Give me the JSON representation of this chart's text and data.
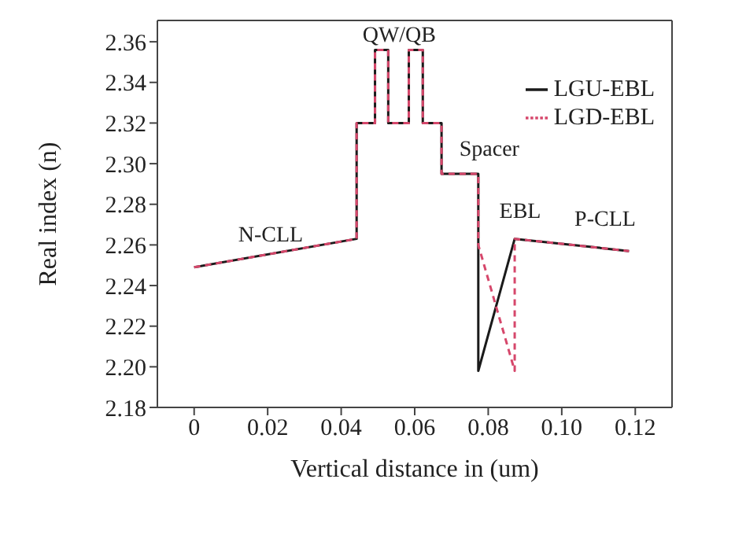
{
  "chart_data": {
    "type": "line",
    "xlabel": "Vertical distance in (um)",
    "ylabel": "Real index (n)",
    "xlim": [
      -0.01,
      0.13
    ],
    "ylim": [
      2.18,
      2.3705
    ],
    "xticks": [
      0,
      {
        "value": 0.02,
        "label": "0.02"
      },
      {
        "value": 0.04,
        "label": "0.04"
      },
      {
        "value": 0.06,
        "label": "0.06"
      },
      {
        "value": 0.08,
        "label": "0.08"
      },
      {
        "value": 0.1,
        "label": "0.10"
      },
      {
        "value": 0.12,
        "label": "0.12"
      }
    ],
    "yticks": [
      2.18,
      {
        "value": 2.2,
        "label": "2.20"
      },
      2.22,
      2.24,
      2.26,
      2.28,
      {
        "value": 2.3,
        "label": "2.30"
      },
      2.32,
      2.34,
      2.36
    ],
    "series": [
      {
        "name": "LGU-EBL",
        "color": "#1a1a1a",
        "line_style": "solid",
        "x": [
          0,
          0.0442,
          0.0442,
          0.0492,
          0.0492,
          0.0528,
          0.0528,
          0.0584,
          0.0584,
          0.0622,
          0.0622,
          0.0673,
          0.0673,
          0.0773,
          0.0773,
          0.0872,
          0.1183
        ],
        "values": [
          2.249,
          2.263,
          2.32,
          2.32,
          2.356,
          2.356,
          2.32,
          2.32,
          2.356,
          2.356,
          2.32,
          2.32,
          2.295,
          2.295,
          2.198,
          2.263,
          2.257
        ]
      },
      {
        "name": "LGD-EBL",
        "color": "#d6476b",
        "line_style": "dashed",
        "x": [
          0,
          0.0442,
          0.0442,
          0.0492,
          0.0492,
          0.0528,
          0.0528,
          0.0584,
          0.0584,
          0.0622,
          0.0622,
          0.0673,
          0.0673,
          0.0773,
          0.0773,
          0.0872,
          0.0872,
          0.1183
        ],
        "values": [
          2.249,
          2.263,
          2.32,
          2.32,
          2.356,
          2.356,
          2.32,
          2.32,
          2.356,
          2.356,
          2.32,
          2.32,
          2.295,
          2.295,
          2.26,
          2.198,
          2.263,
          2.257
        ]
      }
    ],
    "annotations": [
      "N-CLL",
      "QW/QB",
      "Spacer",
      "EBL",
      "P-CLL"
    ],
    "legend": "top right",
    "grid": false,
    "marker": "none"
  }
}
